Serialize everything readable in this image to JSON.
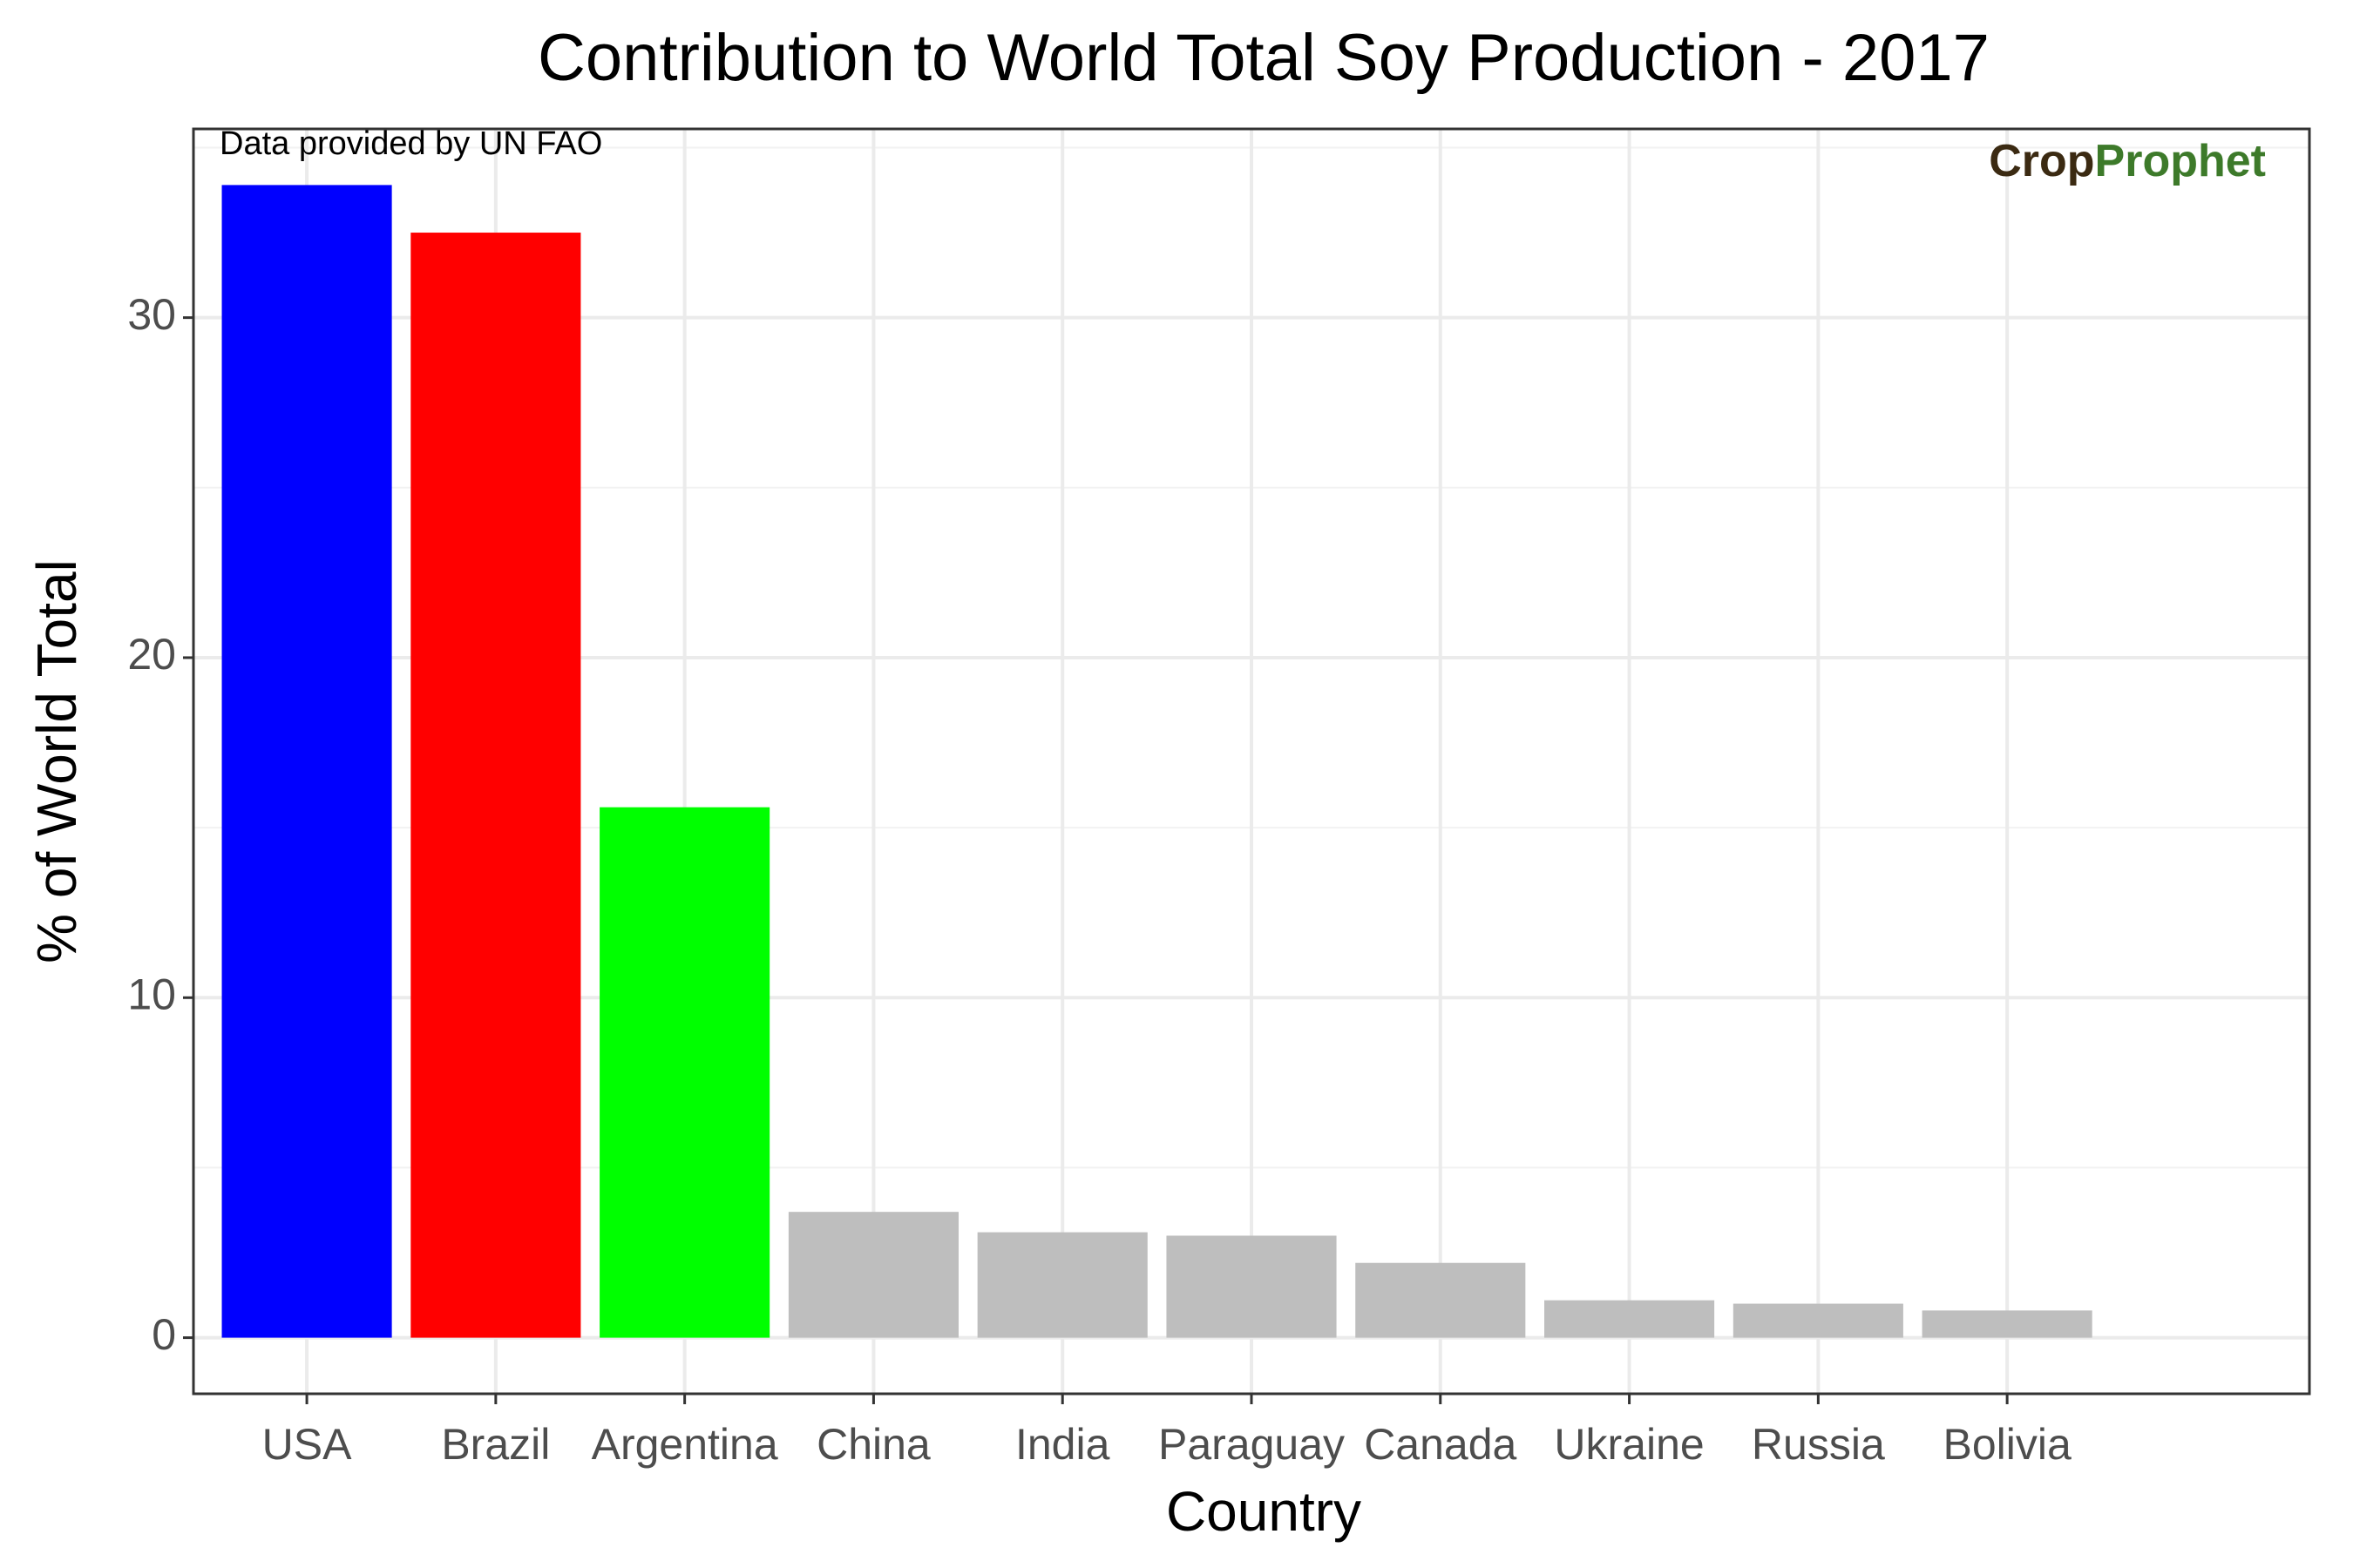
{
  "chart_data": {
    "type": "bar",
    "title": "Contribution to World Total Soy Production - 2017",
    "x_label": "Country",
    "y_label": "% of World Total",
    "annotation": "Data provided by UN FAO",
    "logo": [
      {
        "text": "Crop",
        "color": "#3b2a12"
      },
      {
        "text": "Prophet",
        "color": "#3d7a2a"
      }
    ],
    "categories": [
      "USA",
      "Brazil",
      "Argentina",
      "China",
      "India",
      "Paraguay",
      "Canada",
      "Ukraine",
      "Russia",
      "Bolivia"
    ],
    "values": [
      33.9,
      32.5,
      15.6,
      3.7,
      3.1,
      3.0,
      2.2,
      1.1,
      1.0,
      0.8
    ],
    "colors": [
      "#0000ff",
      "#ff0000",
      "#00ff00",
      "#bebebe",
      "#bebebe",
      "#bebebe",
      "#bebebe",
      "#bebebe",
      "#bebebe",
      "#bebebe"
    ],
    "ylim": [
      -1.65,
      35.55
    ],
    "yticks": [
      0,
      10,
      20,
      30
    ],
    "minor_yticks": [
      5,
      15,
      25,
      35
    ],
    "grid": true
  }
}
